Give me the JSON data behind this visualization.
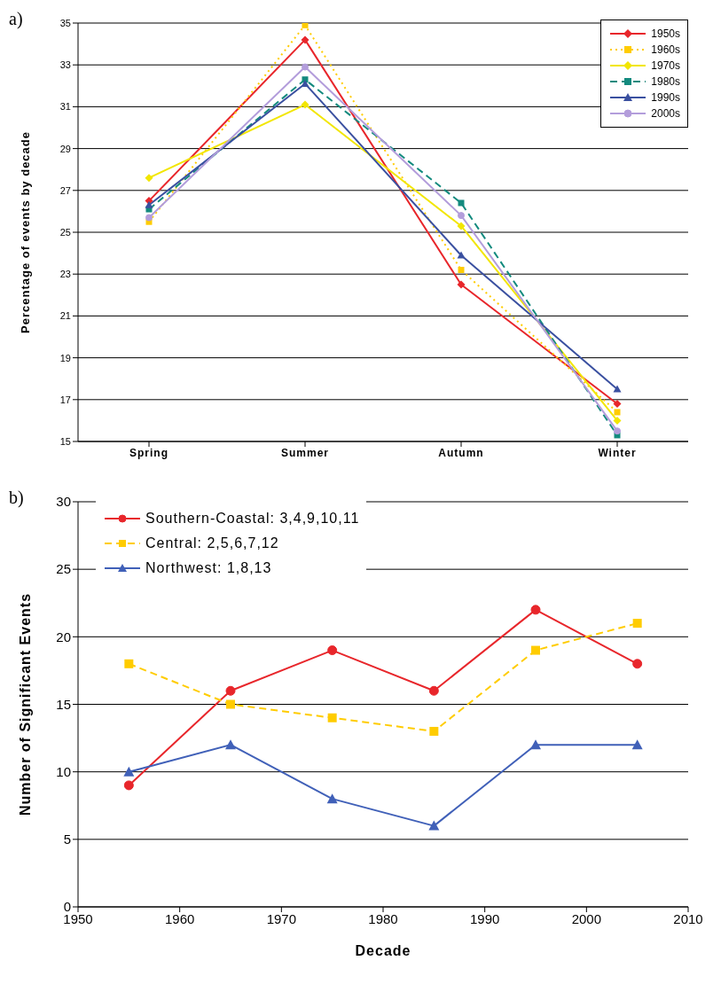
{
  "chart_data": [
    {
      "type": "line",
      "annotations": [
        "a)"
      ],
      "ylabel": "Percentage of events by decade",
      "categories": [
        "Spring",
        "Summer",
        "Autumn",
        "Winter"
      ],
      "ylim": [
        15,
        35
      ],
      "yticks": [
        15,
        17,
        19,
        21,
        23,
        25,
        27,
        29,
        31,
        33,
        35
      ],
      "grid": "y",
      "legend": "top right",
      "series": [
        {
          "name": "1950s",
          "color": "#e8262b",
          "marker": "diamond",
          "line_style": "solid",
          "values": [
            26.5,
            34.2,
            22.5,
            16.8
          ]
        },
        {
          "name": "1960s",
          "color": "#ffcc00",
          "marker": "square",
          "line_style": "dotted",
          "values": [
            25.5,
            34.9,
            23.2,
            16.4
          ]
        },
        {
          "name": "1970s",
          "color": "#f2e600",
          "marker": "diamond",
          "line_style": "solid",
          "values": [
            27.6,
            31.1,
            25.3,
            16.0
          ]
        },
        {
          "name": "1980s",
          "color": "#138a7e",
          "marker": "square",
          "line_style": "dashed",
          "values": [
            26.1,
            32.3,
            26.4,
            15.3
          ]
        },
        {
          "name": "1990s",
          "color": "#3a50a0",
          "marker": "triangle",
          "line_style": "solid",
          "values": [
            26.3,
            32.1,
            23.9,
            17.5
          ]
        },
        {
          "name": "2000s",
          "color": "#b39ddb",
          "marker": "circle",
          "line_style": "solid",
          "values": [
            25.7,
            32.9,
            25.8,
            15.5
          ]
        }
      ]
    },
    {
      "type": "line",
      "annotations": [
        "b)"
      ],
      "xlabel": "Decade",
      "ylabel": "Number of Significant Events",
      "x": [
        1955,
        1965,
        1975,
        1985,
        1995,
        2005
      ],
      "xlim": [
        1950,
        2010
      ],
      "xticks": [
        1950,
        1960,
        1970,
        1980,
        1990,
        2000,
        2010
      ],
      "ylim": [
        0,
        30
      ],
      "yticks": [
        0,
        5,
        10,
        15,
        20,
        25,
        30
      ],
      "grid": "y",
      "legend": "top left",
      "series": [
        {
          "name": "Southern-Coastal: 3,4,9,10,11",
          "color": "#e8262b",
          "marker": "circle",
          "line_style": "solid",
          "values": [
            9,
            16,
            19,
            16,
            22,
            18
          ]
        },
        {
          "name": "Central: 2,5,6,7,12",
          "color": "#ffcc00",
          "marker": "square",
          "line_style": "dashed",
          "values": [
            18,
            15,
            14,
            13,
            19,
            21
          ]
        },
        {
          "name": "Northwest: 1,8,13",
          "color": "#4060b8",
          "marker": "triangle",
          "line_style": "solid",
          "values": [
            10,
            12,
            8,
            6,
            12,
            12
          ]
        }
      ]
    }
  ]
}
